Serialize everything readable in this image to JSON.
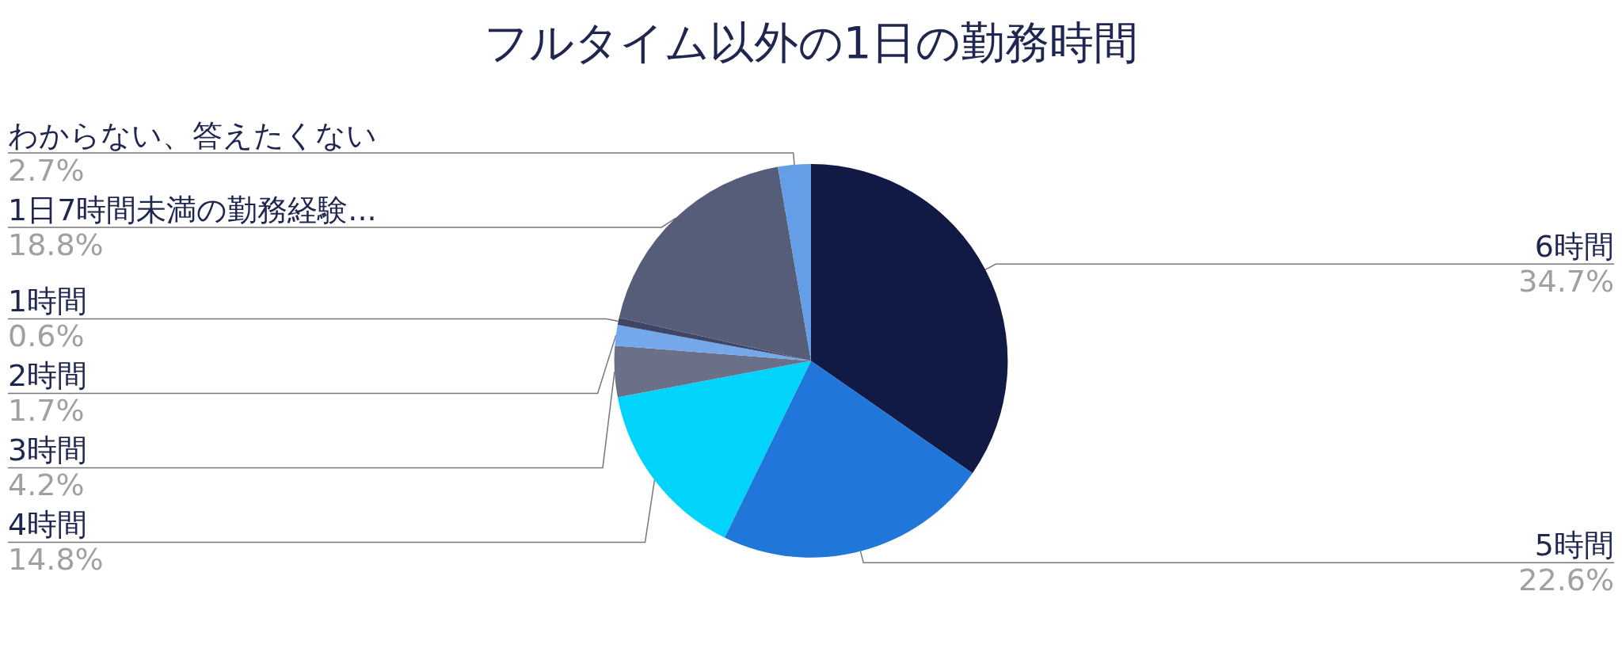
{
  "chart_data": {
    "type": "pie",
    "title": "フルタイム以外の1日の勤務時間",
    "categories": [
      "6時間",
      "5時間",
      "4時間",
      "3時間",
      "2時間",
      "1時間",
      "1日7時間未満の勤務経験...",
      "わからない、答えたくない"
    ],
    "values": [
      34.7,
      22.6,
      14.8,
      4.2,
      1.7,
      0.6,
      18.8,
      2.7
    ],
    "value_labels": [
      "34.7%",
      "22.6%",
      "14.8%",
      "4.2%",
      "1.7%",
      "0.6%",
      "18.8%",
      "2.7%"
    ],
    "colors": [
      "#111a45",
      "#2176d9",
      "#00d4fc",
      "#6b7089",
      "#74a8ea",
      "#3e4566",
      "#555d78",
      "#639ee6"
    ],
    "legend": false
  }
}
